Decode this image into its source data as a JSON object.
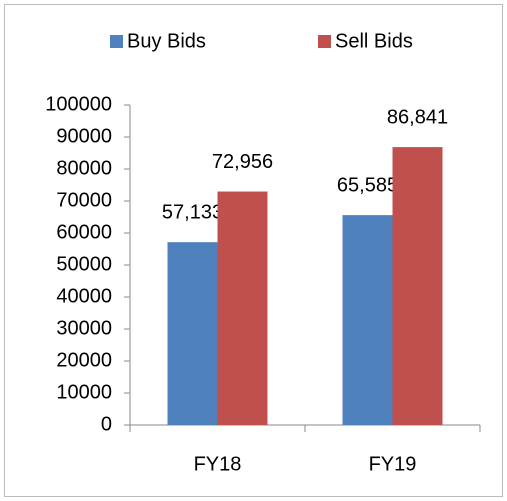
{
  "chart_data": {
    "type": "bar",
    "categories": [
      "FY18",
      "FY19"
    ],
    "series": [
      {
        "name": "Buy Bids",
        "color": "#4f81bd",
        "values": [
          57133,
          65585
        ],
        "value_labels": [
          "57,133",
          "65,585"
        ]
      },
      {
        "name": "Sell Bids",
        "color": "#c0504d",
        "values": [
          72956,
          86841
        ],
        "value_labels": [
          "72,956",
          "86,841"
        ]
      }
    ],
    "ylim": [
      0,
      100000
    ],
    "yticks": [
      0,
      10000,
      20000,
      30000,
      40000,
      50000,
      60000,
      70000,
      80000,
      90000,
      100000
    ],
    "grid": false,
    "legend": "top"
  }
}
